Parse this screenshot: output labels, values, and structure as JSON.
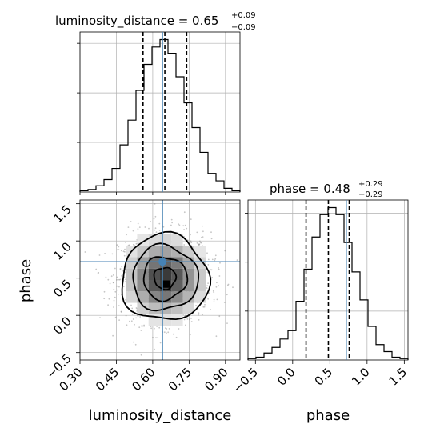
{
  "chart_data": {
    "type": "corner",
    "colors": {
      "truth": "#4682b4",
      "hist": "#000000",
      "grid": "#b0b0b0",
      "samples": "#808080"
    },
    "parameters": [
      {
        "name": "luminosity_distance",
        "median": "0.65",
        "plus": "+0.09",
        "minus": "−0.09"
      },
      {
        "name": "phase",
        "median": "0.48",
        "plus": "+0.29",
        "minus": "−0.29"
      }
    ],
    "titles": {
      "luminosity_distance": {
        "prefix": "luminosity_distance = 0.65",
        "plus": "+0.09",
        "minus": "−0.09"
      },
      "phase": {
        "prefix": "phase = 0.48",
        "plus": "+0.29",
        "minus": "−0.29"
      }
    },
    "xlabels": {
      "luminosity_distance": "luminosity_distance",
      "phase": "phase"
    },
    "ylabels": {
      "phase": "phase"
    },
    "truths": {
      "luminosity_distance": 0.64,
      "phase": 0.72
    },
    "quantiles": {
      "luminosity_distance": [
        0.56,
        0.65,
        0.74
      ],
      "phase": [
        0.18,
        0.48,
        0.76
      ]
    },
    "ranges": {
      "luminosity_distance": [
        0.3,
        0.96
      ],
      "phase": [
        -0.6,
        1.55
      ]
    },
    "ticks": {
      "luminosity_distance": {
        "values": [
          0.3,
          0.45,
          0.6,
          0.75,
          0.9
        ],
        "labels": [
          "0.30",
          "0.45",
          "0.60",
          "0.75",
          "0.90"
        ]
      },
      "phase_y": {
        "values": [
          -0.5,
          0.0,
          0.5,
          1.0,
          1.5
        ],
        "labels": [
          "−0.5",
          "0.0",
          "0.5",
          "1.0",
          "1.5"
        ]
      },
      "phase_x": {
        "values": [
          -0.5,
          0.0,
          0.5,
          1.0,
          1.5
        ],
        "labels": [
          "−0.5",
          "0.0",
          "0.5",
          "1.0",
          "1.5"
        ]
      }
    },
    "hist_luminosity_distance": {
      "bin_start": 0.3,
      "bin_width": 0.033,
      "counts": [
        1,
        2,
        5,
        10,
        19,
        38,
        58,
        82,
        103,
        117,
        123,
        112,
        93,
        72,
        52,
        32,
        15,
        9,
        3,
        1
      ]
    },
    "hist_phase": {
      "bin_start": -0.6,
      "bin_width": 0.1075,
      "counts": [
        1,
        2,
        5,
        9,
        15,
        21,
        42,
        65,
        88,
        104,
        109,
        104,
        84,
        63,
        43,
        24,
        11,
        6,
        2,
        1
      ]
    },
    "density_2d": {
      "center": [
        0.65,
        0.5
      ],
      "sigma": [
        0.09,
        0.29
      ],
      "contour_levels": [
        0.5,
        1.0,
        1.5,
        2.0
      ]
    },
    "grid": true
  }
}
